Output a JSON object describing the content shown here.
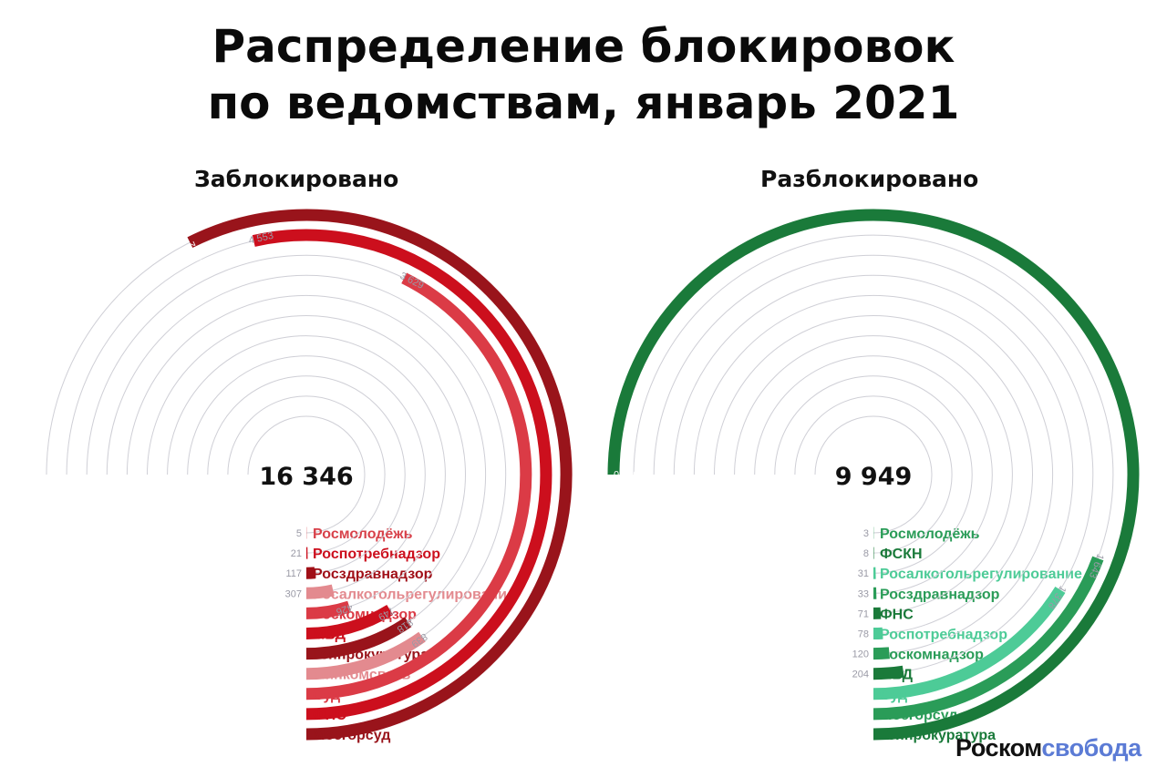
{
  "title": {
    "line1": "Распределение блокировок",
    "line2": "по ведомствам, январь 2021"
  },
  "logo": {
    "part1": "Роском",
    "part2": "свобода",
    "color1": "#111111",
    "color2": "#5b7bd5"
  },
  "chart_data": [
    {
      "type": "radial-bar",
      "title": "Заблокировано",
      "total": "16 346",
      "max_value": 6380,
      "series": [
        {
          "name": "Росмолодёжь",
          "value": 5,
          "value_label": "5",
          "color": "#d8414a"
        },
        {
          "name": "Роспотребнадзор",
          "value": 21,
          "value_label": "21",
          "color": "#cc0f1d"
        },
        {
          "name": "Росздравнадзор",
          "value": 117,
          "value_label": "117",
          "color": "#a00f17"
        },
        {
          "name": "Росалкогольрегулирование",
          "value": 307,
          "value_label": "307",
          "color": "#e38a8f"
        },
        {
          "name": "Роскомнадзор",
          "value": 426,
          "value_label": "426",
          "color": "#db3b46"
        },
        {
          "name": "МВД",
          "value": 749,
          "value_label": "749",
          "color": "#cc0f1d"
        },
        {
          "name": "Генпрокуратура",
          "value": 818,
          "value_label": "818",
          "color": "#99141b"
        },
        {
          "name": "Минкомсвязь",
          "value": 839,
          "value_label": "839",
          "color": "#e38a8f"
        },
        {
          "name": "Суд",
          "value": 3629,
          "value_label": "3 629",
          "color": "#db3b46"
        },
        {
          "name": "ФНС",
          "value": 4553,
          "value_label": "4 553",
          "color": "#cc0f1d"
        },
        {
          "name": "Мосгорсуд",
          "value": 4882,
          "value_label": "4 882",
          "color": "#99141b"
        }
      ]
    },
    {
      "type": "radial-bar",
      "title": "Разблокировано",
      "total": "9 949",
      "max_value": 6380,
      "series": [
        {
          "name": "Росмолодёжь",
          "value": 3,
          "value_label": "3",
          "color": "#2a9c58"
        },
        {
          "name": "ФСКН",
          "value": 8,
          "value_label": "8",
          "color": "#1a7a3a"
        },
        {
          "name": "Росалкогольрегулирование",
          "value": 31,
          "value_label": "31",
          "color": "#4dcb97"
        },
        {
          "name": "Росздравнадзор",
          "value": 33,
          "value_label": "33",
          "color": "#2a9c58"
        },
        {
          "name": "ФНС",
          "value": 71,
          "value_label": "71",
          "color": "#1a7a3a"
        },
        {
          "name": "Роспотребнадзор",
          "value": 78,
          "value_label": "78",
          "color": "#4dcb97"
        },
        {
          "name": "Роскомнадзор",
          "value": 120,
          "value_label": "120",
          "color": "#2a9c58"
        },
        {
          "name": "МВД",
          "value": 204,
          "value_label": "204",
          "color": "#1a7a3a"
        },
        {
          "name": "Суд",
          "value": 1378,
          "value_label": "1 378",
          "color": "#4dcb97"
        },
        {
          "name": "Мосгорсуд",
          "value": 1643,
          "value_label": "1 643",
          "color": "#2a9c58"
        },
        {
          "name": "Генпрокуратура",
          "value": 6380,
          "value_label": "6 380",
          "color": "#1a7a3a"
        }
      ]
    }
  ]
}
